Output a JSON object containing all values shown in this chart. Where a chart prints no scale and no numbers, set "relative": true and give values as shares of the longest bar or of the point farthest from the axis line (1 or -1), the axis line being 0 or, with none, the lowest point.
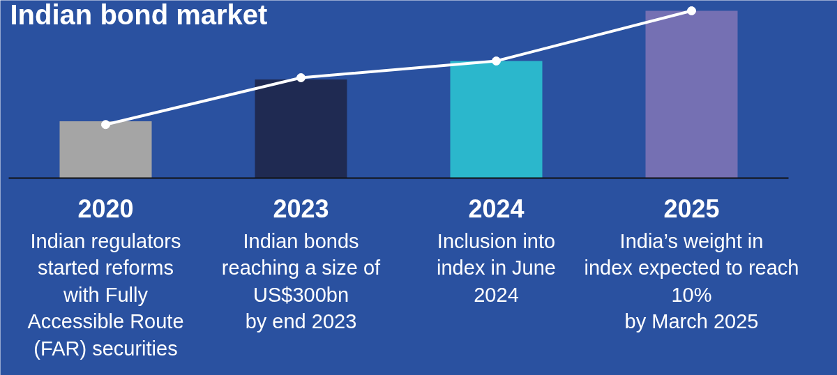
{
  "chart_data": {
    "type": "bar",
    "title": "Indian bond market",
    "relative": true,
    "grid": false,
    "categories": [
      "2020",
      "2023",
      "2024",
      "2025"
    ],
    "series": [
      {
        "colors": [
          "#a5a5a5",
          "#1f2a52",
          "#2bb7cc",
          "#7570b3"
        ],
        "values": [
          0.34,
          0.59,
          0.7,
          1.0
        ]
      },
      {
        "type": "line",
        "color": "#ffffff",
        "marker": "circle",
        "values": [
          0.32,
          0.6,
          0.7,
          1.0
        ]
      }
    ],
    "annotations": [
      "Indian regulators\nstarted reforms\nwith Fully\nAccessible Route\n(FAR) securities",
      "Indian bonds\nreaching a size of\nUS$300bn\nby end 2023",
      "Inclusion into\nindex in June\n2024",
      "India’s weight in\nindex expected to reach\n10%\nby March 2025"
    ]
  }
}
